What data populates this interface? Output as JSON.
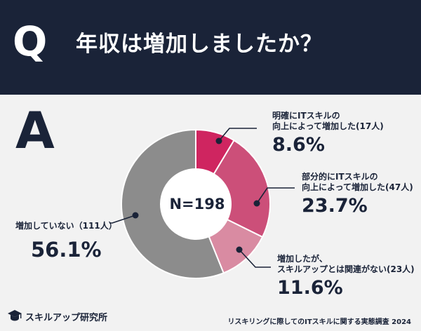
{
  "header": {
    "q_letter": "Q",
    "question": "年収は増加しましたか？"
  },
  "answer_letter": "A",
  "chart_data": {
    "type": "pie",
    "style": "donut",
    "center_label": "N=198",
    "slices": [
      {
        "label_lines": [
          "明確にITスキルの",
          "向上によって増加した(17人)"
        ],
        "count": 17,
        "value": 8.6,
        "value_label": "8.6%",
        "color": "#cf2560"
      },
      {
        "label_lines": [
          "部分的にITスキルの",
          "向上によって増加した(47人)"
        ],
        "count": 47,
        "value": 23.7,
        "value_label": "23.7%",
        "color": "#cc4f79"
      },
      {
        "label_lines": [
          "増加したが、",
          "スキルアップとは関連がない(23人)"
        ],
        "count": 23,
        "value": 11.6,
        "value_label": "11.6%",
        "color": "#d98ba2"
      },
      {
        "label_lines": [
          "増加していない（111人）"
        ],
        "count": 111,
        "value": 56.1,
        "value_label": "56.1%",
        "color": "#8c8c8c"
      }
    ]
  },
  "footer": {
    "brand": "スキルアップ研究所",
    "note": "リスキリングに際してのITスキルに関する実態調査 2024"
  }
}
